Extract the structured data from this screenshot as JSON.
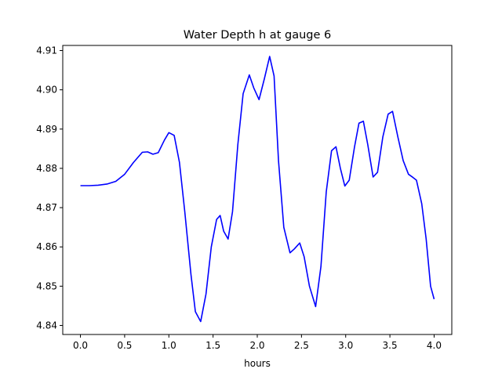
{
  "chart_data": {
    "type": "line",
    "title": "Water Depth h at gauge 6",
    "xlabel": "hours",
    "ylabel": "",
    "xlim": [
      -0.2,
      4.2
    ],
    "ylim": [
      4.8377,
      4.9113
    ],
    "grid": false,
    "legend": "none",
    "x_ticks": [
      0.0,
      0.5,
      1.0,
      1.5,
      2.0,
      2.5,
      3.0,
      3.5,
      4.0
    ],
    "x_tick_labels": [
      "0.0",
      "0.5",
      "1.0",
      "1.5",
      "2.0",
      "2.5",
      "3.0",
      "3.5",
      "4.0"
    ],
    "y_ticks": [
      4.84,
      4.85,
      4.86,
      4.87,
      4.88,
      4.89,
      4.9,
      4.91
    ],
    "y_tick_labels": [
      "4.84",
      "4.85",
      "4.86",
      "4.87",
      "4.88",
      "4.89",
      "4.90",
      "4.91"
    ],
    "series": [
      {
        "name": "",
        "color": "#0000ff",
        "x": [
          0.0,
          0.1,
          0.2,
          0.3,
          0.4,
          0.5,
          0.6,
          0.7,
          0.76,
          0.82,
          0.88,
          0.95,
          1.0,
          1.06,
          1.12,
          1.18,
          1.25,
          1.3,
          1.36,
          1.42,
          1.48,
          1.54,
          1.58,
          1.62,
          1.67,
          1.72,
          1.78,
          1.84,
          1.91,
          1.96,
          2.02,
          2.08,
          2.14,
          2.19,
          2.24,
          2.3,
          2.37,
          2.42,
          2.48,
          2.53,
          2.59,
          2.66,
          2.72,
          2.78,
          2.84,
          2.89,
          2.94,
          2.99,
          3.04,
          3.1,
          3.15,
          3.2,
          3.25,
          3.31,
          3.36,
          3.42,
          3.48,
          3.53,
          3.59,
          3.65,
          3.71,
          3.76,
          3.8,
          3.86,
          3.91,
          3.96,
          4.0
        ],
        "values": [
          4.8756,
          4.8756,
          4.8757,
          4.876,
          4.8767,
          4.8785,
          4.8815,
          4.8841,
          4.8842,
          4.8836,
          4.884,
          4.8872,
          4.8891,
          4.8884,
          4.8815,
          4.869,
          4.853,
          4.8435,
          4.841,
          4.848,
          4.86,
          4.867,
          4.868,
          4.864,
          4.862,
          4.869,
          4.886,
          4.899,
          4.9038,
          4.9005,
          4.8975,
          4.9028,
          4.9085,
          4.9035,
          4.882,
          4.865,
          4.8585,
          4.8595,
          4.861,
          4.8575,
          4.85,
          4.8448,
          4.855,
          4.874,
          4.8845,
          4.8855,
          4.88,
          4.8755,
          4.877,
          4.8855,
          4.8915,
          4.892,
          4.886,
          4.8778,
          4.879,
          4.888,
          4.8938,
          4.8945,
          4.888,
          4.882,
          4.8785,
          4.8777,
          4.877,
          4.871,
          4.862,
          4.85,
          4.8467
        ]
      }
    ]
  }
}
